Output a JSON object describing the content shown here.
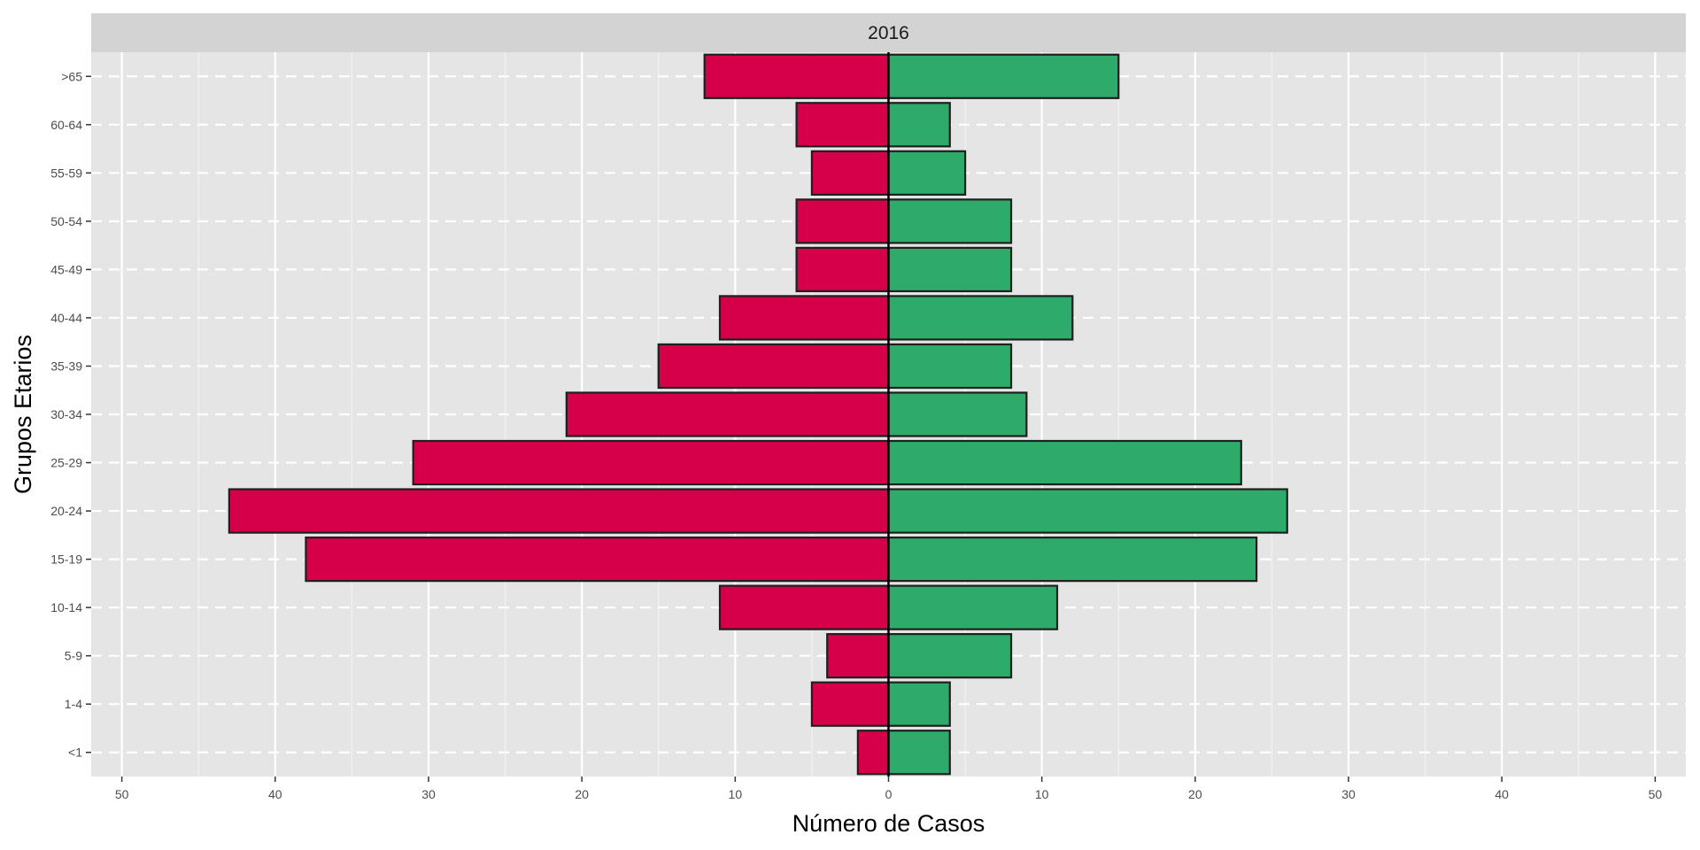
{
  "chart_data": {
    "type": "bar",
    "orientation": "horizontal",
    "layout": "population-pyramid",
    "facet_label": "2016",
    "xlabel": "Número de Casos",
    "ylabel": "Grupos Etarios",
    "xlim": [
      -52,
      52
    ],
    "x_ticks": [
      -50,
      -40,
      -30,
      -20,
      -10,
      0,
      10,
      20,
      30,
      40,
      50
    ],
    "x_tick_labels": [
      "50",
      "40",
      "30",
      "20",
      "10",
      "0",
      "10",
      "20",
      "30",
      "40",
      "50"
    ],
    "categories": [
      "<1",
      "1-4",
      "5-9",
      "10-14",
      "15-19",
      "20-24",
      "25-29",
      "30-34",
      "35-39",
      "40-44",
      "45-49",
      "50-54",
      "55-59",
      "60-64",
      ">65"
    ],
    "series": [
      {
        "color": "#d6004a",
        "side": "left",
        "values": [
          2,
          5,
          4,
          11,
          38,
          43,
          31,
          21,
          15,
          11,
          6,
          6,
          5,
          6,
          12
        ]
      },
      {
        "color": "#2eaa6a",
        "side": "right",
        "values": [
          4,
          4,
          8,
          11,
          24,
          26,
          23,
          9,
          8,
          12,
          8,
          8,
          5,
          4,
          15
        ]
      }
    ],
    "legend": "none",
    "grid": true,
    "panel_background": "#e5e5e5",
    "strip_background": "#d3d3d3"
  }
}
